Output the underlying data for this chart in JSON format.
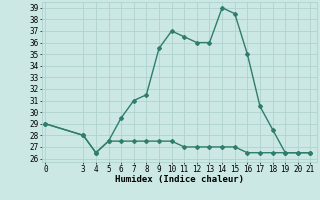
{
  "xlabel": "Humidex (Indice chaleur)",
  "line1_x": [
    0,
    3,
    4,
    5,
    6,
    7,
    8,
    9,
    10,
    11,
    12,
    13,
    14,
    15,
    16,
    17,
    18,
    19,
    20,
    21
  ],
  "line1_y": [
    29,
    28,
    26.5,
    27.5,
    29.5,
    31,
    31.5,
    35.5,
    37,
    36.5,
    36,
    36,
    39,
    38.5,
    35,
    30.5,
    28.5,
    26.5,
    26.5,
    26.5
  ],
  "line2_x": [
    0,
    3,
    4,
    5,
    6,
    7,
    8,
    9,
    10,
    11,
    12,
    13,
    14,
    15,
    16,
    17,
    18,
    19,
    20,
    21
  ],
  "line2_y": [
    29,
    28,
    26.5,
    27.5,
    27.5,
    27.5,
    27.5,
    27.5,
    27.5,
    27.0,
    27.0,
    27.0,
    27.0,
    27.0,
    26.5,
    26.5,
    26.5,
    26.5,
    26.5,
    26.5
  ],
  "line_color": "#2e7d6d",
  "bg_color": "#cce8e4",
  "grid_color": "#aacfcb",
  "ylim": [
    25.7,
    39.5
  ],
  "xlim": [
    -0.3,
    21.5
  ],
  "yticks": [
    26,
    27,
    28,
    29,
    30,
    31,
    32,
    33,
    34,
    35,
    36,
    37,
    38,
    39
  ],
  "xticks": [
    0,
    3,
    4,
    5,
    6,
    7,
    8,
    9,
    10,
    11,
    12,
    13,
    14,
    15,
    16,
    17,
    18,
    19,
    20,
    21
  ],
  "marker": "D",
  "marker_size": 2.0,
  "line_width": 1.0,
  "axis_fontsize": 6.5,
  "tick_fontsize": 5.5
}
